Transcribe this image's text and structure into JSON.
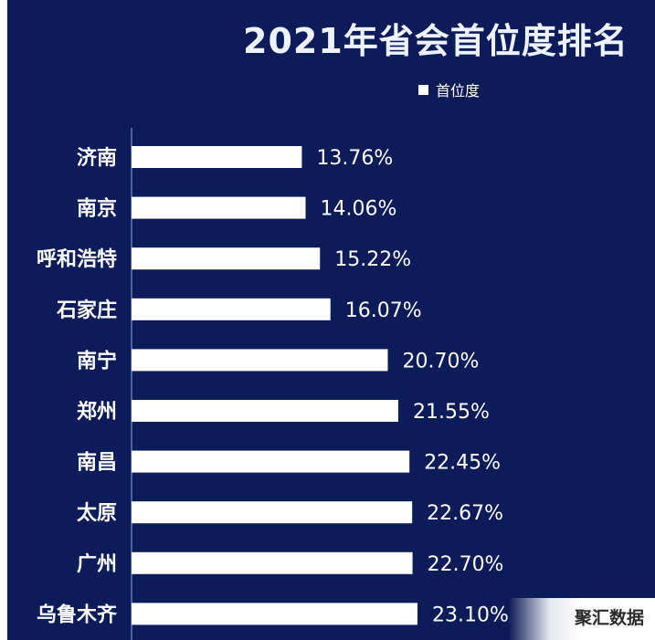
{
  "chart_data": {
    "type": "bar",
    "orientation": "horizontal",
    "title": "2021年省会首位度排名",
    "legend": {
      "label": "首位度",
      "placement": "top-right"
    },
    "categories": [
      "济南",
      "南京",
      "呼和浩特",
      "石家庄",
      "南宁",
      "郑州",
      "南昌",
      "太原",
      "广州",
      "乌鲁木齐"
    ],
    "series": [
      {
        "name": "首位度",
        "values": [
          13.76,
          14.06,
          15.22,
          16.07,
          20.7,
          21.55,
          22.45,
          22.67,
          22.7,
          23.1
        ],
        "labels": [
          "13.76%",
          "14.06%",
          "15.22%",
          "16.07%",
          "20.70%",
          "21.55%",
          "22.45%",
          "22.67%",
          "22.70%",
          "23.10%"
        ]
      }
    ],
    "grid": false,
    "colors": {
      "background": "#0c1c58",
      "bar": "#ffffff",
      "text": "#ffffff"
    }
  },
  "watermark": "聚汇数据"
}
